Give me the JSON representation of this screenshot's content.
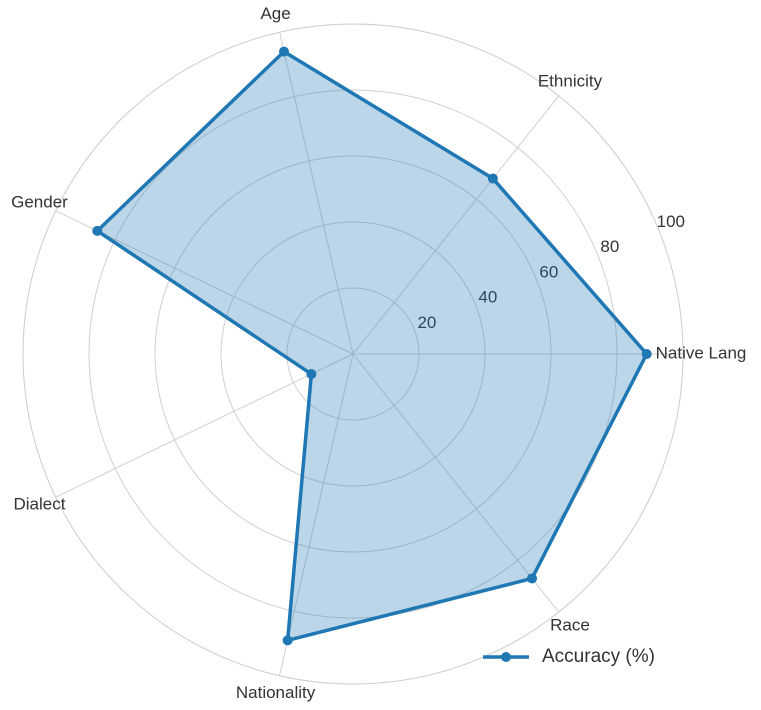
{
  "chart_data": {
    "type": "radar",
    "categories": [
      "Native Lang",
      "Ethnicity",
      "Age",
      "Gender",
      "Dialect",
      "Nationality",
      "Race"
    ],
    "series": [
      {
        "name": "Accuracy (%)",
        "color": "#1f77b4",
        "values": [
          89,
          68,
          94,
          86,
          14,
          89,
          87
        ]
      }
    ],
    "ylim": [
      0,
      100
    ],
    "yticks": [
      20,
      40,
      60,
      80,
      100
    ],
    "grid": true,
    "legend": "lower right"
  }
}
